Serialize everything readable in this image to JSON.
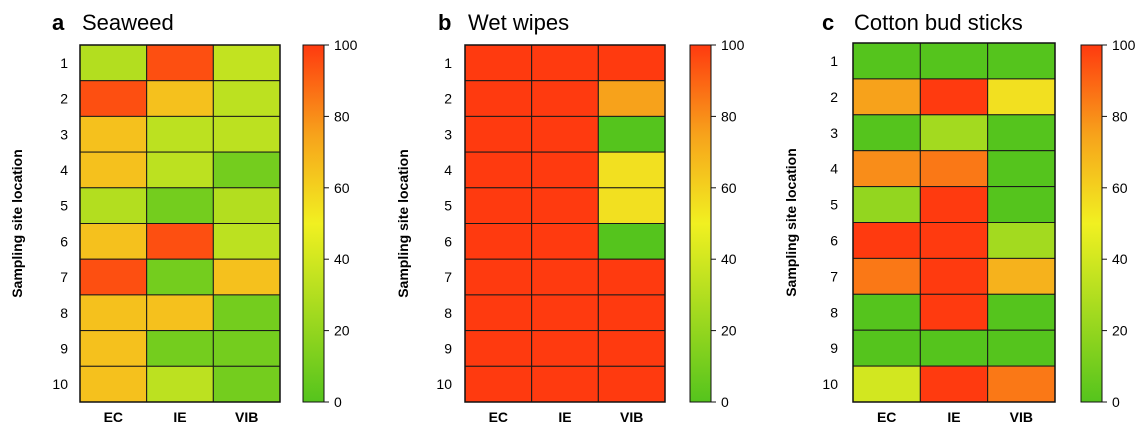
{
  "chart_data": [
    {
      "type": "heatmap",
      "panel": "a",
      "title": "Seaweed",
      "ylabel": "Sampling site location",
      "xlabel": "",
      "x_categories": [
        "EC",
        "IE",
        "VIB"
      ],
      "y_categories": [
        "1",
        "2",
        "3",
        "4",
        "5",
        "6",
        "7",
        "8",
        "9",
        "10"
      ],
      "values": [
        [
          30,
          95,
          35
        ],
        [
          95,
          65,
          33
        ],
        [
          65,
          33,
          33
        ],
        [
          65,
          33,
          10
        ],
        [
          30,
          10,
          30
        ],
        [
          65,
          95,
          33
        ],
        [
          95,
          10,
          65
        ],
        [
          65,
          65,
          10
        ],
        [
          65,
          10,
          10
        ],
        [
          65,
          33,
          10
        ]
      ],
      "colorbar": {
        "min": 0,
        "max": 100,
        "ticks": [
          "0",
          "20",
          "40",
          "60",
          "80",
          "100"
        ]
      }
    },
    {
      "type": "heatmap",
      "panel": "b",
      "title": "Wet wipes",
      "ylabel": "Sampling site location",
      "xlabel": "",
      "x_categories": [
        "EC",
        "IE",
        "VIB"
      ],
      "y_categories": [
        "1",
        "2",
        "3",
        "4",
        "5",
        "6",
        "7",
        "8",
        "9",
        "10"
      ],
      "values": [
        [
          100,
          100,
          100
        ],
        [
          100,
          100,
          75
        ],
        [
          100,
          100,
          0
        ],
        [
          100,
          100,
          55
        ],
        [
          100,
          100,
          55
        ],
        [
          100,
          100,
          0
        ],
        [
          100,
          100,
          100
        ],
        [
          100,
          100,
          100
        ],
        [
          100,
          100,
          100
        ],
        [
          100,
          100,
          100
        ]
      ],
      "colorbar": {
        "min": 0,
        "max": 100,
        "ticks": [
          "0",
          "20",
          "40",
          "60",
          "80",
          "100"
        ]
      }
    },
    {
      "type": "heatmap",
      "panel": "c",
      "title": "Cotton bud sticks",
      "ylabel": "Sampling site location",
      "xlabel": "",
      "x_categories": [
        "EC",
        "IE",
        "VIB"
      ],
      "y_categories": [
        "1",
        "2",
        "3",
        "4",
        "5",
        "6",
        "7",
        "8",
        "9",
        "10"
      ],
      "values": [
        [
          0,
          0,
          0
        ],
        [
          75,
          100,
          55
        ],
        [
          0,
          25,
          0
        ],
        [
          80,
          85,
          0
        ],
        [
          20,
          100,
          0
        ],
        [
          100,
          100,
          25
        ],
        [
          85,
          100,
          70
        ],
        [
          0,
          100,
          0
        ],
        [
          0,
          0,
          0
        ],
        [
          40,
          100,
          85
        ]
      ],
      "colorbar": {
        "min": 0,
        "max": 100,
        "ticks": [
          "0",
          "20",
          "40",
          "60",
          "80",
          "100"
        ]
      }
    }
  ]
}
